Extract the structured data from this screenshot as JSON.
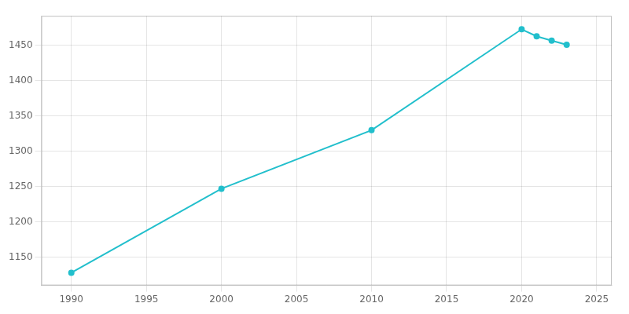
{
  "chart_data": {
    "type": "line",
    "x": [
      1990,
      2000,
      2010,
      2020,
      2021,
      2022,
      2023
    ],
    "values": [
      1128,
      1247,
      1330,
      1473,
      1463,
      1457,
      1451
    ],
    "color": "#22BFCC",
    "marker": "circle",
    "xlim": [
      1988,
      2026
    ],
    "ylim": [
      1110,
      1492
    ],
    "xticks": [
      1990,
      1995,
      2000,
      2005,
      2010,
      2015,
      2020,
      2025
    ],
    "yticks": [
      1150,
      1200,
      1250,
      1300,
      1350,
      1400,
      1450
    ],
    "grid": true
  }
}
